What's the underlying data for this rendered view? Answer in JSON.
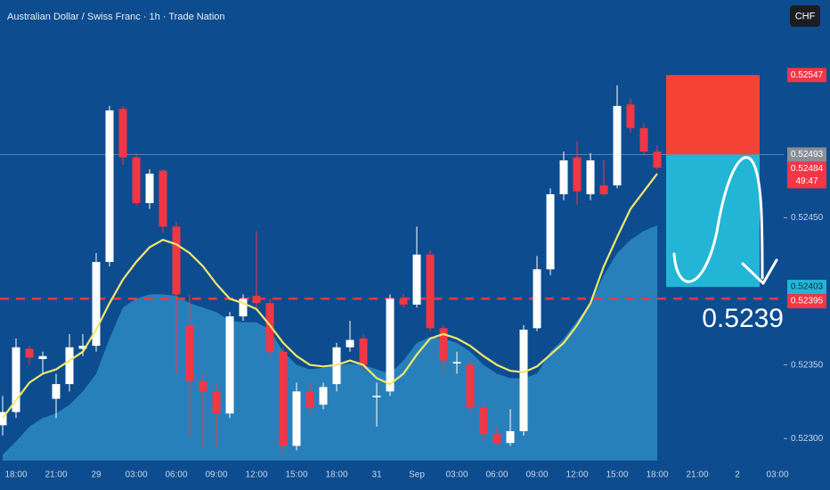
{
  "chart_data": {
    "type": "candlestick",
    "title": "Australian Dollar / Swiss Franc · 1h · Trade Nation",
    "currency": "CHF",
    "annotation": "0.5239",
    "categories": [
      null,
      "18:00",
      null,
      null,
      "21:00",
      null,
      null,
      "29",
      null,
      null,
      "03:00",
      null,
      null,
      "06:00",
      null,
      null,
      "09:00",
      null,
      null,
      "12:00",
      null,
      null,
      "15:00",
      null,
      null,
      "18:00",
      null,
      null,
      "31",
      null,
      null,
      "Sep",
      null,
      null,
      "03:00",
      null,
      null,
      "06:00",
      null,
      null,
      "09:00",
      null,
      null,
      "12:00",
      null,
      null,
      "15:00",
      null,
      null,
      "18:00",
      null,
      null,
      "21:00",
      null,
      null,
      "2",
      null,
      null,
      "03:00"
    ],
    "open": [
      0.52309,
      0.52318,
      0.52361,
      0.52354,
      0.52327,
      0.52337,
      0.52361,
      0.52363,
      0.5242,
      0.52524,
      0.52491,
      0.5246,
      0.52482,
      0.52444,
      0.52377,
      0.52339,
      0.52332,
      0.52317,
      0.52383,
      0.52397,
      0.52392,
      0.52359,
      0.52295,
      0.52332,
      0.52323,
      0.52337,
      0.52362,
      0.52368,
      0.52328,
      0.52332,
      0.52395,
      0.52391,
      0.52425,
      0.52375,
      0.52351,
      0.5235,
      0.52321,
      0.52303,
      0.52297,
      0.52305,
      0.52375,
      0.52415,
      0.52466,
      0.52491,
      0.52466,
      0.52472,
      0.52472,
      0.52527,
      0.52511,
      0.52495,
      null,
      null,
      null,
      null,
      null,
      null,
      null,
      null,
      null
    ],
    "high": [
      0.52329,
      0.52368,
      0.52363,
      0.52359,
      0.52344,
      0.52371,
      0.52371,
      0.52426,
      0.52526,
      0.52526,
      0.52494,
      0.52483,
      0.52483,
      0.52447,
      0.52398,
      0.52344,
      0.52338,
      0.52386,
      0.52398,
      0.52441,
      0.52395,
      0.52362,
      0.52338,
      0.52338,
      0.52338,
      0.52365,
      0.5238,
      0.52371,
      0.52338,
      0.52398,
      0.52398,
      0.52444,
      0.52428,
      0.52377,
      0.52359,
      0.52353,
      0.52323,
      0.52308,
      0.5232,
      0.52377,
      0.52424,
      0.5247,
      0.52495,
      0.52502,
      0.52494,
      0.52489,
      0.5254,
      0.52531,
      0.52514,
      0.52499,
      null,
      null,
      null,
      null,
      null,
      null,
      null,
      null,
      null
    ],
    "low": [
      0.52302,
      0.52314,
      0.5235,
      0.52344,
      0.52314,
      0.52332,
      0.52356,
      0.52359,
      0.52417,
      0.52486,
      0.52458,
      0.52456,
      0.5244,
      0.52344,
      0.52302,
      0.52295,
      0.52295,
      0.52314,
      0.5238,
      0.52389,
      0.52356,
      0.52289,
      0.52292,
      0.52317,
      0.5232,
      0.52332,
      0.52359,
      0.52347,
      0.52308,
      0.52329,
      0.52389,
      0.52389,
      0.52373,
      0.52344,
      0.52344,
      0.52318,
      0.52298,
      0.52295,
      0.52295,
      0.52302,
      0.52373,
      0.52411,
      0.52462,
      0.52459,
      0.52462,
      0.52465,
      0.5247,
      0.52508,
      0.52492,
      0.52483,
      null,
      null,
      null,
      null,
      null,
      null,
      null,
      null,
      null
    ],
    "close": [
      0.52318,
      0.52362,
      0.52355,
      0.52356,
      0.52337,
      0.52362,
      0.52363,
      0.5242,
      0.52523,
      0.52491,
      0.5246,
      0.5248,
      0.52444,
      0.52398,
      0.52339,
      0.52332,
      0.52317,
      0.52383,
      0.52395,
      0.52392,
      0.52359,
      0.52295,
      0.52332,
      0.52321,
      0.52335,
      0.52362,
      0.52367,
      0.5235,
      0.52329,
      0.52395,
      0.52391,
      0.52425,
      0.52375,
      0.52353,
      0.52352,
      0.52321,
      0.52303,
      0.52297,
      0.52305,
      0.52374,
      0.52415,
      0.52466,
      0.52489,
      0.52468,
      0.52489,
      0.52466,
      0.52526,
      0.52511,
      0.52495,
      0.52484,
      null,
      null,
      null,
      null,
      null,
      null,
      null,
      null,
      null
    ],
    "up_color": "#ffffff",
    "down_color": "#f23645",
    "ma": {
      "color": "#f3e86a",
      "values": [
        0.52314,
        0.52326,
        0.52338,
        0.52344,
        0.52347,
        0.52353,
        0.52359,
        0.52374,
        0.52392,
        0.52408,
        0.5242,
        0.5243,
        0.52435,
        0.52432,
        0.52426,
        0.52417,
        0.52405,
        0.52395,
        0.52392,
        0.52388,
        0.52377,
        0.52365,
        0.52356,
        0.5235,
        0.52349,
        0.5235,
        0.52353,
        0.5235,
        0.52341,
        0.52337,
        0.52344,
        0.52357,
        0.52368,
        0.52371,
        0.52368,
        0.52363,
        0.52356,
        0.5235,
        0.52346,
        0.52345,
        0.52349,
        0.52357,
        0.52365,
        0.52377,
        0.52392,
        0.52417,
        0.52437,
        0.52456,
        0.52468,
        0.5248,
        null,
        null,
        null,
        null,
        null,
        null,
        null,
        null,
        null
      ]
    },
    "area": {
      "color": "#3aa3d8",
      "values": [
        0.52289,
        0.52298,
        0.52308,
        0.52314,
        0.52317,
        0.52323,
        0.52332,
        0.52344,
        0.52368,
        0.52389,
        0.52395,
        0.52398,
        0.52398,
        0.52397,
        0.52392,
        0.52389,
        0.52386,
        0.5238,
        0.52379,
        0.52379,
        0.52374,
        0.52359,
        0.5235,
        0.52347,
        0.52348,
        0.5235,
        0.52351,
        0.5235,
        0.52347,
        0.52344,
        0.52353,
        0.52365,
        0.52369,
        0.52368,
        0.52365,
        0.52359,
        0.5235,
        0.52344,
        0.52341,
        0.52341,
        0.52344,
        0.52359,
        0.52368,
        0.5238,
        0.52392,
        0.52411,
        0.52426,
        0.52435,
        0.52441,
        0.52445,
        null,
        null,
        null,
        null,
        null,
        null,
        null,
        null,
        null
      ]
    },
    "ylim": [
      0.52285,
      0.52598
    ],
    "yticks": [
      {
        "value": 0.523,
        "label": "0.52300"
      },
      {
        "value": 0.5235,
        "label": "0.52350"
      },
      {
        "value": 0.5245,
        "label": "0.52450"
      }
    ],
    "level_line": {
      "value": 0.52395,
      "color": "#f23645"
    },
    "price_line": {
      "value": 0.52493,
      "color": "#8fa3b8"
    },
    "position": {
      "stop": 0.52547,
      "entry": 0.52493,
      "target": 0.52403,
      "stop_color": "#f44336",
      "target_color": "#22b5d6"
    },
    "price_labels": [
      {
        "value": 0.52547,
        "color": "#f23645",
        "text_color": "#ffffff"
      },
      {
        "value": 0.52493,
        "color": "#8a8f98",
        "text_color": "#ffffff"
      },
      {
        "value": 0.52484,
        "color": "#f23645",
        "text_color": "#ffffff",
        "countdown": "49:47"
      },
      {
        "value": 0.52403,
        "color": "#22b5d6",
        "text_color": "#0b2e4f"
      },
      {
        "value": 0.52395,
        "color": "#f23645",
        "text_color": "#ffffff"
      }
    ]
  }
}
